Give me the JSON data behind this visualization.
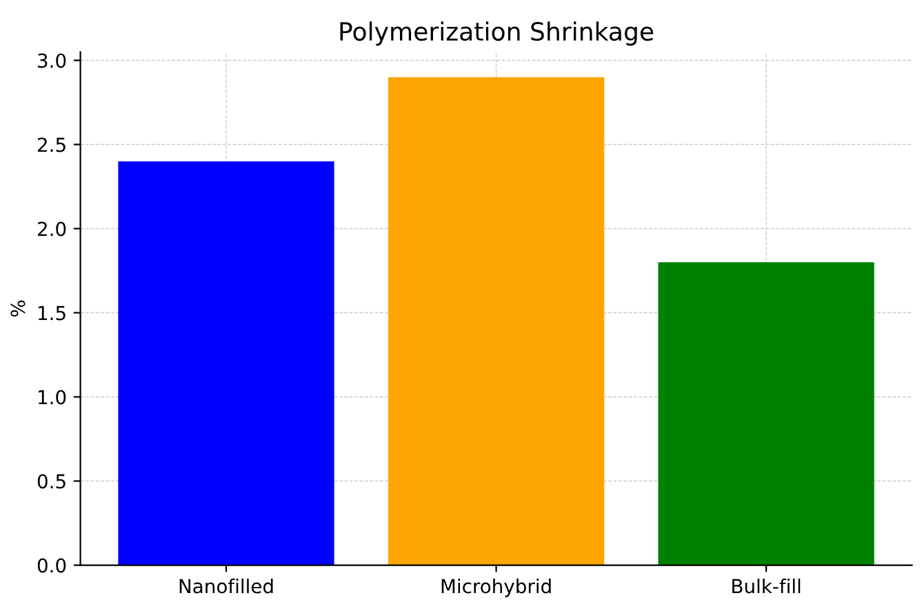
{
  "chart_data": {
    "type": "bar",
    "title": "Polymerization Shrinkage",
    "ylabel": "%",
    "categories": [
      "Nanofilled",
      "Microhybrid",
      "Bulk-fill"
    ],
    "values": [
      2.4,
      2.9,
      1.8
    ],
    "colors": [
      "#0000ff",
      "#ffa500",
      "#008000"
    ],
    "ylim": [
      0,
      3.05
    ],
    "yticks": [
      {
        "value": 0,
        "label": "0.0"
      },
      0.5,
      {
        "value": 1,
        "label": "1.0"
      },
      1.5,
      {
        "value": 2,
        "label": "2.0"
      },
      2.5,
      {
        "value": 3,
        "label": "3.0"
      }
    ],
    "grid": true
  }
}
